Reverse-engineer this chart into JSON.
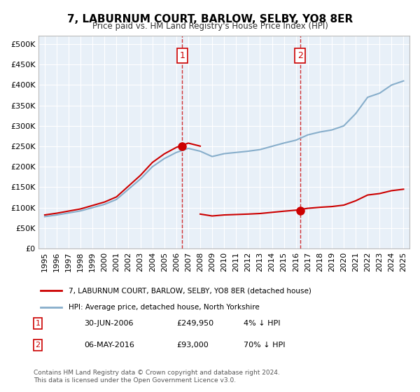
{
  "title": "7, LABURNUM COURT, BARLOW, SELBY, YO8 8ER",
  "subtitle": "Price paid vs. HM Land Registry's House Price Index (HPI)",
  "ylabel_ticks": [
    0,
    50000,
    100000,
    150000,
    200000,
    250000,
    300000,
    350000,
    400000,
    450000,
    500000
  ],
  "ylim": [
    0,
    520000
  ],
  "xlim_start": 1995.0,
  "xlim_end": 2025.5,
  "legend_line1": "7, LABURNUM COURT, BARLOW, SELBY, YO8 8ER (detached house)",
  "legend_line2": "HPI: Average price, detached house, North Yorkshire",
  "sale1_date": 2006.5,
  "sale1_price": 249950,
  "sale1_label": "1",
  "sale2_date": 2016.35,
  "sale2_price": 93000,
  "sale2_label": "2",
  "hpi_color": "#87AECB",
  "property_color": "#CC0000",
  "marker_color": "#CC0000",
  "vline_color": "#CC0000",
  "bg_color": "#DDEEFF",
  "plot_bg": "#E8F0F8",
  "footnote": "Contains HM Land Registry data © Crown copyright and database right 2024.\nThis data is licensed under the Open Government Licence v3.0.",
  "table_row1": [
    "1",
    "30-JUN-2006",
    "£249,950",
    "4% ↓ HPI"
  ],
  "table_row2": [
    "2",
    "06-MAY-2016",
    "£93,000",
    "70% ↓ HPI"
  ]
}
